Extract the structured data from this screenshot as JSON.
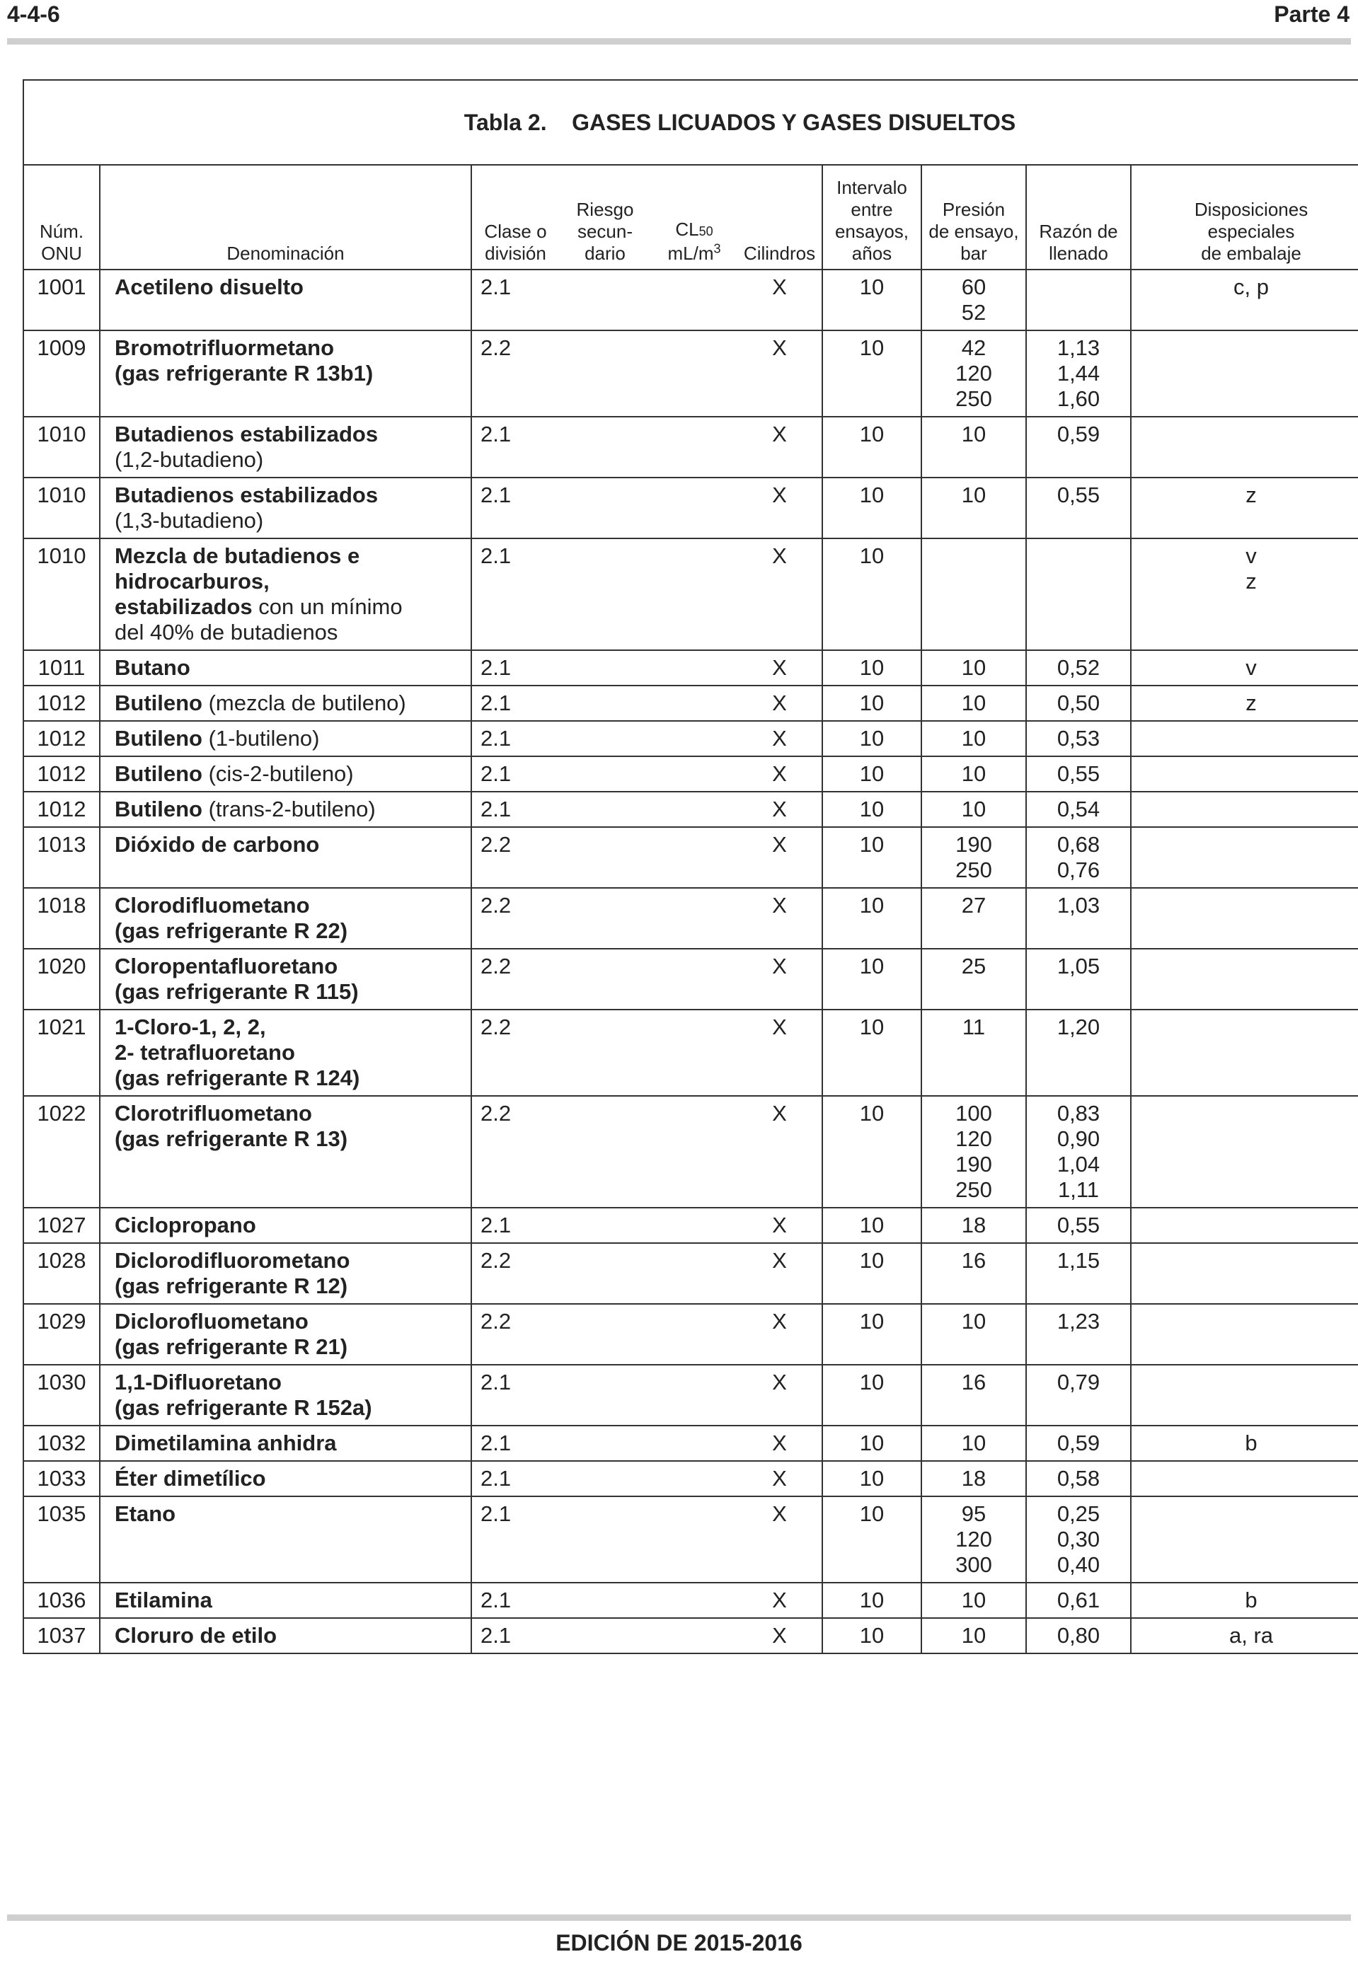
{
  "header": {
    "left": "4-4-6",
    "right": "Parte 4"
  },
  "footer": {
    "text": "EDICIÓN DE 2015-2016"
  },
  "table": {
    "title": "Tabla 2.    GASES LICUADOS Y GASES DISUELTOS",
    "columns": {
      "un_1": "Núm.",
      "un_2": "ONU",
      "name": "Denominación",
      "class_1": "Clase o",
      "class_2": "división",
      "risk_1": "Riesgo",
      "risk_2": "secun-",
      "risk_3": "dario",
      "lc_1": "CL",
      "lc_sub": "50",
      "lc_2": "mL/m",
      "lc_sup": "3",
      "cyl": "Cilindros",
      "interval_1": "Intervalo",
      "interval_2": "entre",
      "interval_3": "ensayos,",
      "interval_4": "años",
      "pressure_1": "Presión",
      "pressure_2": "de ensayo,",
      "pressure_3": "bar",
      "ratio_1": "Razón de",
      "ratio_2": "llenado",
      "special_1": "Disposiciones",
      "special_2": "especiales",
      "special_3": "de embalaje"
    },
    "rows": [
      {
        "un": "1001",
        "bold": [
          "Acetileno disuelto"
        ],
        "normal": [],
        "cls": "2.1",
        "risk": "",
        "lc": "",
        "cyl": "X",
        "interval": "10",
        "pressure": [
          "60",
          "52"
        ],
        "ratio": [],
        "special": [
          "c, p"
        ]
      },
      {
        "un": "1009",
        "bold": [
          "Bromotrifluormetano",
          "(gas refrigerante R 13b1)"
        ],
        "normal": [],
        "cls": "2.2",
        "risk": "",
        "lc": "",
        "cyl": "X",
        "interval": "10",
        "pressure": [
          "42",
          "120",
          "250"
        ],
        "ratio": [
          "1,13",
          "1,44",
          "1,60"
        ],
        "special": []
      },
      {
        "un": "1010",
        "bold": [
          "Butadienos estabilizados"
        ],
        "normal": [
          "(1,2-butadieno)"
        ],
        "cls": "2.1",
        "risk": "",
        "lc": "",
        "cyl": "X",
        "interval": "10",
        "pressure": [
          "10"
        ],
        "ratio": [
          "0,59"
        ],
        "special": []
      },
      {
        "un": "1010",
        "bold": [
          "Butadienos estabilizados"
        ],
        "normal": [
          "(1,3-butadieno)"
        ],
        "cls": "2.1",
        "risk": "",
        "lc": "",
        "cyl": "X",
        "interval": "10",
        "pressure": [
          "10"
        ],
        "ratio": [
          "0,55"
        ],
        "special": [
          "z"
        ]
      },
      {
        "un": "1010",
        "bold": [
          "Mezcla de butadienos e",
          "hidrocarburos,"
        ],
        "mixed_bold": "estabilizados",
        "mixed_normal": " con un mínimo",
        "normal": [
          "del 40% de butadienos"
        ],
        "cls": "2.1",
        "risk": "",
        "lc": "",
        "cyl": "X",
        "interval": "10",
        "pressure": [],
        "ratio": [],
        "special": [
          "v",
          "z"
        ]
      },
      {
        "un": "1011",
        "bold": [
          "Butano"
        ],
        "normal": [],
        "cls": "2.1",
        "risk": "",
        "lc": "",
        "cyl": "X",
        "interval": "10",
        "pressure": [
          "10"
        ],
        "ratio": [
          "0,52"
        ],
        "special": [
          "v"
        ]
      },
      {
        "un": "1012",
        "inline_bold": "Butileno",
        "inline_normal": " (mezcla de butileno)",
        "cls": "2.1",
        "risk": "",
        "lc": "",
        "cyl": "X",
        "interval": "10",
        "pressure": [
          "10"
        ],
        "ratio": [
          "0,50"
        ],
        "special": [
          "z"
        ]
      },
      {
        "un": "1012",
        "inline_bold": "Butileno",
        "inline_normal": " (1-butileno)",
        "cls": "2.1",
        "risk": "",
        "lc": "",
        "cyl": "X",
        "interval": "10",
        "pressure": [
          "10"
        ],
        "ratio": [
          "0,53"
        ],
        "special": []
      },
      {
        "un": "1012",
        "inline_bold": "Butileno",
        "inline_normal": " (cis-2-butileno)",
        "cls": "2.1",
        "risk": "",
        "lc": "",
        "cyl": "X",
        "interval": "10",
        "pressure": [
          "10"
        ],
        "ratio": [
          "0,55"
        ],
        "special": []
      },
      {
        "un": "1012",
        "inline_bold": "Butileno",
        "inline_normal": " (trans-2-butileno)",
        "cls": "2.1",
        "risk": "",
        "lc": "",
        "cyl": "X",
        "interval": "10",
        "pressure": [
          "10"
        ],
        "ratio": [
          "0,54"
        ],
        "special": []
      },
      {
        "un": "1013",
        "bold": [
          "Dióxido de carbono"
        ],
        "normal": [],
        "cls": "2.2",
        "risk": "",
        "lc": "",
        "cyl": "X",
        "interval": "10",
        "pressure": [
          "190",
          "250"
        ],
        "ratio": [
          "0,68",
          "0,76"
        ],
        "special": [],
        "extra_space": true
      },
      {
        "un": "1018",
        "bold": [
          "Clorodifluometano",
          "(gas refrigerante R 22)"
        ],
        "normal": [],
        "cls": "2.2",
        "risk": "",
        "lc": "",
        "cyl": "X",
        "interval": "10",
        "pressure": [
          "27"
        ],
        "ratio": [
          "1,03"
        ],
        "special": []
      },
      {
        "un": "1020",
        "bold": [
          "Cloropentafluoretano",
          "(gas refrigerante R 115)"
        ],
        "normal": [],
        "cls": "2.2",
        "risk": "",
        "lc": "",
        "cyl": "X",
        "interval": "10",
        "pressure": [
          "25"
        ],
        "ratio": [
          "1,05"
        ],
        "special": []
      },
      {
        "un": "1021",
        "bold": [
          "1-Cloro-1, 2, 2,",
          "2- tetrafluoretano",
          "(gas refrigerante R 124)"
        ],
        "normal": [],
        "cls": "2.2",
        "risk": "",
        "lc": "",
        "cyl": "X",
        "interval": "10",
        "pressure": [
          "11"
        ],
        "ratio": [
          "1,20"
        ],
        "special": []
      },
      {
        "un": "1022",
        "bold": [
          "Clorotrifluometano",
          "(gas refrigerante R 13)"
        ],
        "normal": [],
        "cls": "2.2",
        "risk": "",
        "lc": "",
        "cyl": "X",
        "interval": "10",
        "pressure": [
          "100",
          "120",
          "190",
          "250"
        ],
        "ratio": [
          "0,83",
          "0,90",
          "1,04",
          "1,11"
        ],
        "special": []
      },
      {
        "un": "1027",
        "bold": [
          "Ciclopropano"
        ],
        "normal": [],
        "cls": "2.1",
        "risk": "",
        "lc": "",
        "cyl": "X",
        "interval": "10",
        "pressure": [
          "18"
        ],
        "ratio": [
          "0,55"
        ],
        "special": []
      },
      {
        "un": "1028",
        "bold": [
          "Diclorodifluorometano",
          "(gas refrigerante R 12)"
        ],
        "normal": [],
        "cls": "2.2",
        "risk": "",
        "lc": "",
        "cyl": "X",
        "interval": "10",
        "pressure": [
          "16"
        ],
        "ratio": [
          "1,15"
        ],
        "special": []
      },
      {
        "un": "1029",
        "bold": [
          "Diclorofluometano",
          "(gas refrigerante R 21)"
        ],
        "normal": [],
        "cls": "2.2",
        "risk": "",
        "lc": "",
        "cyl": "X",
        "interval": "10",
        "pressure": [
          "10"
        ],
        "ratio": [
          "1,23"
        ],
        "special": []
      },
      {
        "un": "1030",
        "bold": [
          "1,1-Difluoretano",
          "(gas refrigerante R 152a)"
        ],
        "normal": [],
        "cls": "2.1",
        "risk": "",
        "lc": "",
        "cyl": "X",
        "interval": "10",
        "pressure": [
          "16"
        ],
        "ratio": [
          "0,79"
        ],
        "special": []
      },
      {
        "un": "1032",
        "bold": [
          "Dimetilamina anhidra"
        ],
        "normal": [],
        "cls": "2.1",
        "risk": "",
        "lc": "",
        "cyl": "X",
        "interval": "10",
        "pressure": [
          "10"
        ],
        "ratio": [
          "0,59"
        ],
        "special": [
          "b"
        ]
      },
      {
        "un": "1033",
        "bold": [
          "Éter dimetílico"
        ],
        "normal": [],
        "cls": "2.1",
        "risk": "",
        "lc": "",
        "cyl": "X",
        "interval": "10",
        "pressure": [
          "18"
        ],
        "ratio": [
          "0,58"
        ],
        "special": []
      },
      {
        "un": "1035",
        "bold": [
          "Etano"
        ],
        "normal": [],
        "cls": "2.1",
        "risk": "",
        "lc": "",
        "cyl": "X",
        "interval": "10",
        "pressure": [
          "95",
          "120",
          "300"
        ],
        "ratio": [
          "0,25",
          "0,30",
          "0,40"
        ],
        "special": []
      },
      {
        "un": "1036",
        "bold": [
          "Etilamina"
        ],
        "normal": [],
        "cls": "2.1",
        "risk": "",
        "lc": "",
        "cyl": "X",
        "interval": "10",
        "pressure": [
          "10"
        ],
        "ratio": [
          "0,61"
        ],
        "special": [
          "b"
        ]
      },
      {
        "un": "1037",
        "bold": [
          "Cloruro de etilo"
        ],
        "normal": [],
        "cls": "2.1",
        "risk": "",
        "lc": "",
        "cyl": "X",
        "interval": "10",
        "pressure": [
          "10"
        ],
        "ratio": [
          "0,80"
        ],
        "special": [
          "a, ra"
        ]
      }
    ]
  }
}
